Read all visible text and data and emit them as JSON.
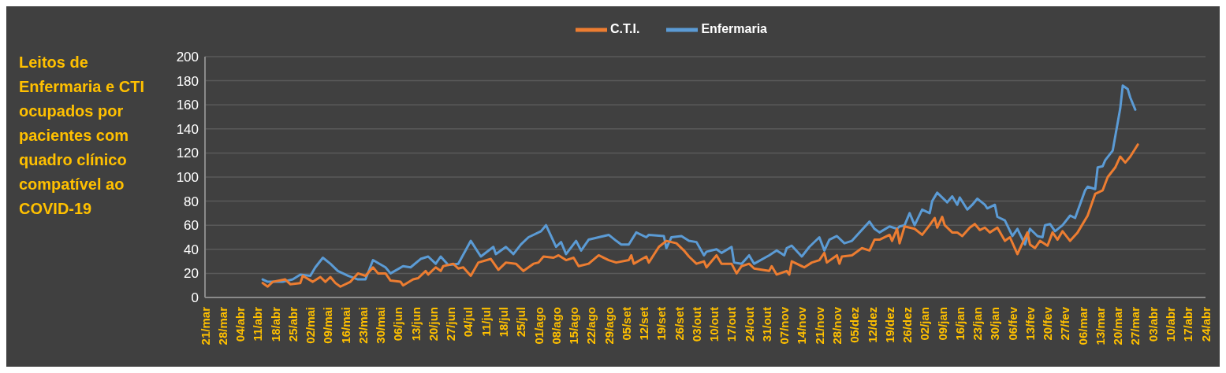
{
  "chart_data": {
    "type": "line",
    "title": "Leitos de Enfermaria e CTI ocupados por pacientes com quadro clínico compatível ao COVID-19",
    "categories": [
      "21/mar",
      null,
      null,
      null,
      null,
      null,
      null,
      "28/mar",
      null,
      null,
      null,
      null,
      null,
      null,
      "04/abr",
      null,
      null,
      null,
      null,
      null,
      null,
      "11/abr",
      null,
      null,
      null,
      null,
      null,
      null,
      "18/abr",
      null,
      null,
      null,
      null,
      null,
      null,
      "25/abr",
      null,
      null,
      null,
      null,
      null,
      null,
      "02/mai",
      null,
      null,
      null,
      null,
      null,
      null,
      "09/mai",
      null,
      null,
      null,
      null,
      null,
      null,
      "16/mai",
      null,
      null,
      null,
      null,
      null,
      null,
      "23/mai",
      null,
      null,
      null,
      null,
      null,
      null,
      "30/mai",
      null,
      null,
      null,
      null,
      null,
      null,
      "06/jun",
      null,
      null,
      null,
      null,
      null,
      null,
      "13/jun",
      null,
      null,
      null,
      null,
      null,
      null,
      "20/jun",
      null,
      null,
      null,
      null,
      null,
      null,
      "27/jun",
      null,
      null,
      null,
      null,
      null,
      null,
      "04/jul",
      null,
      null,
      null,
      null,
      null,
      null,
      "11/jul",
      null,
      null,
      null,
      null,
      null,
      null,
      "18/jul",
      null,
      null,
      null,
      null,
      null,
      null,
      "25/jul",
      null,
      null,
      null,
      null,
      null,
      null,
      "01/ago",
      null,
      null,
      null,
      null,
      null,
      null,
      "08/ago",
      null,
      null,
      null,
      null,
      null,
      null,
      "15/ago",
      null,
      null,
      null,
      null,
      null,
      null,
      "22/ago",
      null,
      null,
      null,
      null,
      null,
      null,
      "29/ago",
      null,
      null,
      null,
      null,
      null,
      null,
      "05/set",
      null,
      null,
      null,
      null,
      null,
      null,
      "12/set",
      null,
      null,
      null,
      null,
      null,
      null,
      "19/set",
      null,
      null,
      null,
      null,
      null,
      null,
      "26/set",
      null,
      null,
      null,
      null,
      null,
      null,
      "03/out",
      null,
      null,
      null,
      null,
      null,
      null,
      "10/out",
      null,
      null,
      null,
      null,
      null,
      null,
      "17/out",
      null,
      null,
      null,
      null,
      null,
      null,
      "24/out",
      null,
      null,
      null,
      null,
      null,
      null,
      "31/out",
      null,
      null,
      null,
      null,
      null,
      null,
      "07/nov",
      null,
      null,
      null,
      null,
      null,
      null,
      "14/nov",
      null,
      null,
      null,
      null,
      null,
      null,
      "21/nov",
      null,
      null,
      null,
      null,
      null,
      null,
      "28/nov",
      null,
      null,
      null,
      null,
      null,
      null,
      "05/dez",
      null,
      null,
      null,
      null,
      null,
      null,
      "12/dez",
      null,
      null,
      null,
      null,
      null,
      null,
      "19/dez",
      null,
      null,
      null,
      null,
      null,
      null,
      "26/dez",
      null,
      null,
      null,
      null,
      null,
      null,
      "02/jan",
      null,
      null,
      null,
      null,
      null,
      null,
      "09/jan",
      null,
      null,
      null,
      null,
      null,
      null,
      "16/jan",
      null,
      null,
      null,
      null,
      null,
      null,
      "23/jan",
      null,
      null,
      null,
      null,
      null,
      null,
      "30/jan",
      null,
      null,
      null,
      null,
      null,
      null,
      "06/fev",
      null,
      null,
      null,
      null,
      null,
      null,
      "13/fev",
      null,
      null,
      null,
      null,
      null,
      null,
      "20/fev",
      null,
      null,
      null,
      null,
      null,
      null,
      "27/fev",
      null,
      null,
      null,
      null,
      null,
      null,
      "06/mar",
      null,
      null,
      null,
      null,
      null,
      null,
      "13/mar",
      null,
      null,
      null,
      null,
      null,
      null,
      "20/mar",
      null,
      null,
      null,
      null,
      null,
      null,
      "27/mar",
      null,
      null,
      null,
      null,
      null,
      null,
      "03/abr",
      null,
      null,
      null,
      null,
      null,
      null,
      "10/abr",
      null,
      null,
      null,
      null,
      null,
      null,
      "17/abr",
      null,
      null,
      null,
      null,
      null,
      null,
      "24/abr"
    ],
    "ylim": [
      0,
      200
    ],
    "yticks": [
      0,
      20,
      40,
      60,
      80,
      100,
      120,
      140,
      160,
      180,
      200
    ],
    "grid": "y",
    "legend": "top",
    "marker": "none",
    "line_style": "solid",
    "series": [
      {
        "name": "Enfermaria",
        "color": "#5b9bd5",
        "values": [
          null,
          null,
          null,
          null,
          null,
          null,
          null,
          null,
          null,
          null,
          null,
          null,
          null,
          null,
          null,
          null,
          null,
          null,
          null,
          null,
          null,
          null,
          null,
          15,
          null,
          13,
          null,
          null,
          null,
          null,
          null,
          13,
          null,
          null,
          null,
          15,
          null,
          null,
          19,
          null,
          null,
          null,
          18,
          null,
          25,
          null,
          null,
          33,
          null,
          null,
          28,
          null,
          null,
          22,
          null,
          null,
          null,
          18,
          null,
          null,
          null,
          15,
          null,
          null,
          15,
          null,
          null,
          31,
          null,
          null,
          null,
          null,
          25,
          null,
          20,
          null,
          null,
          null,
          null,
          26,
          null,
          null,
          25,
          null,
          null,
          null,
          32,
          null,
          null,
          34,
          null,
          null,
          28,
          null,
          34,
          null,
          null,
          27,
          null,
          null,
          null,
          28,
          null,
          null,
          null,
          null,
          47,
          null,
          null,
          null,
          34,
          null,
          null,
          null,
          null,
          42,
          36,
          null,
          null,
          null,
          42,
          null,
          null,
          36,
          null,
          null,
          44,
          null,
          null,
          50,
          null,
          null,
          null,
          null,
          55,
          null,
          60,
          null,
          null,
          null,
          42,
          null,
          46,
          null,
          36,
          null,
          null,
          null,
          47,
          null,
          39,
          null,
          null,
          48,
          null,
          null,
          null,
          50,
          null,
          null,
          null,
          52,
          null,
          null,
          47,
          null,
          44,
          null,
          null,
          44,
          null,
          null,
          54,
          null,
          null,
          null,
          50,
          52,
          null,
          null,
          null,
          null,
          null,
          51,
          41,
          null,
          50,
          null,
          null,
          null,
          51,
          null,
          null,
          47,
          null,
          null,
          46,
          null,
          null,
          35,
          38,
          null,
          null,
          null,
          40,
          null,
          37,
          null,
          null,
          null,
          42,
          29,
          null,
          null,
          28,
          null,
          null,
          35,
          null,
          28,
          null,
          null,
          null,
          null,
          null,
          35,
          null,
          null,
          39,
          null,
          null,
          35,
          41,
          null,
          43,
          null,
          null,
          null,
          34,
          null,
          null,
          42,
          null,
          null,
          null,
          50,
          null,
          39,
          null,
          48,
          null,
          null,
          51,
          null,
          null,
          45,
          null,
          null,
          47,
          null,
          null,
          54,
          null,
          null,
          null,
          63,
          null,
          57,
          null,
          54,
          null,
          null,
          null,
          59,
          null,
          null,
          57,
          59,
          null,
          60,
          null,
          70,
          null,
          60,
          null,
          null,
          73,
          null,
          null,
          70,
          80,
          null,
          87,
          null,
          null,
          null,
          79,
          null,
          84,
          null,
          77,
          83,
          null,
          null,
          73,
          null,
          77,
          null,
          82,
          null,
          null,
          77,
          74,
          null,
          null,
          77,
          67,
          null,
          null,
          64,
          null,
          null,
          51,
          null,
          57,
          null,
          null,
          44,
          null,
          57,
          null,
          null,
          51,
          null,
          50,
          60,
          null,
          61,
          null,
          55,
          null,
          null,
          60,
          null,
          null,
          68,
          null,
          66,
          null,
          null,
          null,
          89,
          92,
          null,
          null,
          90,
          108,
          null,
          109,
          114,
          null,
          null,
          122,
          null,
          null,
          157,
          176,
          null,
          173,
          166,
          null,
          156,
          null,
          null,
          null,
          null,
          null,
          null,
          null,
          null,
          null,
          null,
          null,
          null,
          null,
          null,
          null,
          null,
          null,
          null,
          null,
          null,
          null,
          null,
          null,
          null,
          null,
          null,
          null,
          null
        ]
      },
      {
        "name": "C.T.I.",
        "color": "#ed7d31",
        "values": [
          null,
          null,
          null,
          null,
          null,
          null,
          null,
          null,
          null,
          null,
          null,
          null,
          null,
          null,
          null,
          null,
          null,
          null,
          null,
          null,
          null,
          null,
          null,
          12,
          null,
          9,
          null,
          13,
          null,
          null,
          null,
          null,
          15,
          null,
          11,
          null,
          null,
          null,
          12,
          18,
          null,
          null,
          null,
          13,
          null,
          null,
          17,
          null,
          13,
          null,
          17,
          null,
          12,
          null,
          9,
          null,
          null,
          null,
          13,
          null,
          null,
          20,
          null,
          null,
          18,
          null,
          null,
          25,
          null,
          20,
          null,
          null,
          20,
          null,
          14,
          null,
          null,
          null,
          13,
          10,
          null,
          null,
          null,
          15,
          null,
          16,
          null,
          null,
          22,
          19,
          null,
          null,
          25,
          null,
          22,
          26,
          null,
          null,
          null,
          28,
          null,
          24,
          null,
          25,
          null,
          null,
          18,
          null,
          null,
          29,
          null,
          null,
          null,
          null,
          32,
          null,
          null,
          23,
          null,
          null,
          29,
          null,
          null,
          null,
          28,
          null,
          null,
          22,
          null,
          null,
          null,
          28,
          null,
          29,
          null,
          34,
          null,
          null,
          null,
          33,
          null,
          35,
          null,
          null,
          31,
          null,
          null,
          33,
          null,
          26,
          null,
          null,
          null,
          28,
          null,
          null,
          null,
          35,
          null,
          null,
          null,
          31,
          null,
          null,
          29,
          null,
          null,
          null,
          null,
          31,
          35,
          28,
          null,
          null,
          null,
          null,
          34,
          29,
          null,
          null,
          null,
          42,
          null,
          null,
          47,
          null,
          null,
          null,
          45,
          null,
          null,
          39,
          null,
          34,
          null,
          null,
          28,
          null,
          null,
          30,
          25,
          null,
          null,
          null,
          35,
          null,
          28,
          null,
          null,
          null,
          28,
          null,
          20,
          null,
          26,
          null,
          null,
          28,
          null,
          24,
          null,
          null,
          null,
          null,
          null,
          22,
          26,
          null,
          19,
          null,
          null,
          null,
          22,
          19,
          30,
          null,
          null,
          null,
          null,
          25,
          null,
          null,
          29,
          null,
          null,
          31,
          null,
          37,
          29,
          null,
          null,
          null,
          35,
          28,
          34,
          null,
          null,
          null,
          35,
          null,
          null,
          null,
          41,
          null,
          null,
          39,
          null,
          48,
          null,
          48,
          null,
          null,
          null,
          52,
          47,
          null,
          57,
          45,
          null,
          59,
          null,
          null,
          null,
          57,
          null,
          null,
          52,
          null,
          null,
          60,
          null,
          66,
          58,
          null,
          67,
          60,
          null,
          null,
          54,
          null,
          54,
          null,
          51,
          null,
          null,
          58,
          null,
          61,
          null,
          56,
          null,
          58,
          null,
          54,
          null,
          null,
          58,
          null,
          null,
          47,
          null,
          50,
          null,
          null,
          36,
          null,
          null,
          null,
          54,
          44,
          null,
          41,
          null,
          47,
          null,
          null,
          43,
          null,
          54,
          null,
          48,
          null,
          55,
          null,
          null,
          47,
          null,
          null,
          54,
          null,
          null,
          null,
          68,
          null,
          null,
          86,
          null,
          null,
          89,
          null,
          100,
          null,
          null,
          108,
          null,
          117,
          null,
          112,
          null,
          117,
          null,
          null,
          127,
          null,
          null,
          null,
          null,
          null,
          null,
          null,
          null,
          null,
          null,
          null,
          null,
          null,
          null,
          null,
          null,
          null,
          null,
          null,
          null,
          null,
          null,
          null,
          null,
          null,
          null,
          null
        ]
      }
    ]
  }
}
